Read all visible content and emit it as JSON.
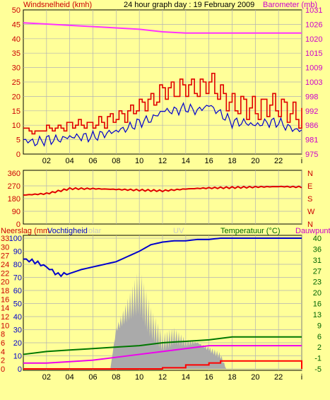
{
  "colors": {
    "background": "#ffff99",
    "plot_bg": "#ffff99",
    "wind": "#cc0000",
    "wind_gust": "#e00000",
    "baro": "#ff33ff",
    "dir": "#e00000",
    "humidity": "#0000cc",
    "temp": "#007700",
    "dew": "#ee00ee",
    "rain": "#ff0000",
    "solar": "#aaaaaa",
    "grid": "#b3b3b3",
    "text_red": "#cc0000",
    "text_blue": "#0000cc",
    "text_green": "#006600",
    "text_magenta": "#cc00cc"
  },
  "chart_data": [
    {
      "type": "line",
      "title": "24 hour graph day : 19 February 2009",
      "ylabel_left": "Windsnelheid (kmh)",
      "ylabel_right": "Barometer (mb)",
      "left_ticks": [
        "0",
        "5",
        "10",
        "15",
        "20",
        "25",
        "30",
        "35",
        "40",
        "45",
        "50"
      ],
      "right_ticks": [
        "975",
        "981",
        "986",
        "992",
        "998",
        "1003",
        "1009",
        "1015",
        "1020",
        "1026",
        "1031"
      ],
      "x_ticks": [
        "02",
        "04",
        "06",
        "08",
        "10",
        "12",
        "14",
        "16",
        "18",
        "20",
        "22",
        "i"
      ],
      "ylim_left": [
        0,
        50
      ],
      "ylim_right": [
        975,
        1031
      ],
      "series": [
        {
          "name": "Windsnelheid (kmh)",
          "x": [
            0,
            1,
            2,
            3,
            4,
            5,
            6,
            7,
            8,
            9,
            10,
            11,
            12,
            13,
            14,
            15,
            16,
            17,
            18,
            19,
            20,
            21,
            22,
            23,
            24
          ],
          "values": [
            5,
            4,
            5,
            5,
            6,
            6,
            6,
            7,
            8,
            9,
            11,
            12,
            15,
            15,
            16,
            15,
            17,
            14,
            11,
            11,
            10,
            11,
            11,
            9,
            8
          ]
        },
        {
          "name": "Barometer (mb)",
          "x": [
            0,
            2,
            4,
            6,
            8,
            10,
            12,
            14,
            16,
            18,
            20,
            22,
            24
          ],
          "values": [
            1026,
            1025.5,
            1025,
            1024.5,
            1024,
            1023.5,
            1022.5,
            1022,
            1022,
            1022,
            1022,
            1022,
            1022
          ]
        }
      ]
    },
    {
      "type": "line",
      "left_ticks": [
        "0",
        "90",
        "180",
        "270",
        "360"
      ],
      "right_labels": [
        "N",
        "W",
        "S",
        "E",
        "N"
      ],
      "ylim": [
        0,
        360
      ],
      "series": [
        {
          "name": "Direction",
          "x": [
            0,
            2,
            4,
            6,
            8,
            10,
            12,
            14,
            16,
            18,
            20,
            22,
            24
          ],
          "values": [
            205,
            215,
            250,
            250,
            245,
            240,
            235,
            248,
            255,
            258,
            262,
            265,
            262
          ]
        }
      ]
    },
    {
      "type": "line",
      "label_neerslag": "Neerslag (mm",
      "label_vochtigheid": "Vochtigheid",
      "label_solar": "olar",
      "label_uv": "UV",
      "label_temp": "Temperatuur (°C)",
      "label_dauwpunt": "Dauwpunt",
      "left_ticks_hum": [
        "0",
        "10",
        "20",
        "30",
        "40",
        "50",
        "60",
        "70",
        "80",
        "90",
        "100"
      ],
      "left_ticks_rain": [
        "0",
        "2",
        "4",
        "6",
        "8",
        "10",
        "12",
        "14",
        "16",
        "18",
        "20",
        "22",
        "24",
        "27",
        "30",
        "33"
      ],
      "right_ticks_temp": [
        "-5",
        "-1",
        "2",
        "6",
        "9",
        "13",
        "16",
        "20",
        "23",
        "27",
        "31",
        "36",
        "40"
      ],
      "ylim_humidity": [
        0,
        100
      ],
      "ylim_temp": [
        -5,
        40
      ],
      "series": [
        {
          "name": "Vochtigheid",
          "x": [
            0,
            1,
            2,
            3,
            4,
            5,
            6,
            7,
            8,
            9,
            10,
            11,
            12,
            13,
            14,
            15,
            16,
            17,
            18,
            19,
            20,
            21,
            22,
            23,
            24
          ],
          "values": [
            84,
            82,
            78,
            72,
            73,
            76,
            78,
            80,
            82,
            86,
            90,
            95,
            97,
            98,
            98,
            99,
            99,
            100,
            100,
            100,
            100,
            100,
            100,
            100,
            100
          ]
        },
        {
          "name": "Temperatuur",
          "x": [
            0,
            2,
            4,
            6,
            8,
            10,
            12,
            14,
            16,
            18,
            20,
            22,
            24
          ],
          "values": [
            0,
            1,
            1.5,
            2,
            2.5,
            3,
            4,
            4.5,
            5,
            6,
            6,
            6,
            6
          ]
        },
        {
          "name": "Dauwpunt",
          "x": [
            0,
            2,
            4,
            6,
            8,
            10,
            12,
            14,
            16,
            18,
            20,
            22,
            24
          ],
          "values": [
            -3,
            -3,
            -2.5,
            -2,
            -1,
            0,
            1,
            2,
            3,
            3,
            3,
            3,
            3
          ]
        },
        {
          "name": "Neerslag",
          "x": [
            0,
            6,
            8,
            10,
            12,
            14,
            16,
            17,
            18,
            20,
            22,
            23.5,
            24
          ],
          "values": [
            0,
            0,
            0,
            0,
            0.3,
            1,
            1.5,
            2,
            2,
            2,
            2,
            2,
            0
          ]
        },
        {
          "name": "Solar",
          "x": [
            7.5,
            8,
            9,
            10,
            11,
            12,
            13,
            14,
            15,
            16,
            17,
            17.5
          ],
          "values": [
            0,
            30,
            45,
            60,
            35,
            20,
            25,
            20,
            20,
            15,
            10,
            0
          ]
        }
      ]
    }
  ]
}
